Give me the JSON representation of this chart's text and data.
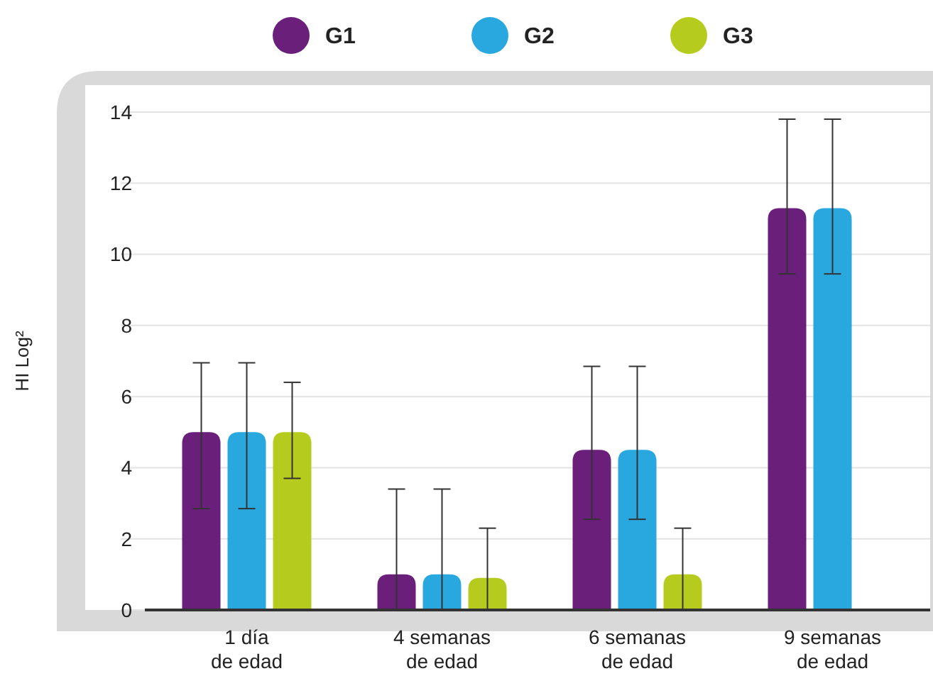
{
  "chart_data": {
    "type": "bar",
    "ylabel": "HI  Log²",
    "categories": [
      "1 día\nde edad",
      "4 semanas\nde edad",
      "6 semanas\nde edad",
      "9 semanas\nde edad"
    ],
    "series": [
      {
        "name": "G1",
        "color": "#6a1f7a",
        "values": [
          5.0,
          1.0,
          4.5,
          11.3
        ],
        "errors": [
          [
            2.85,
            6.95
          ],
          [
            0,
            3.4
          ],
          [
            2.55,
            6.85
          ],
          [
            9.45,
            13.8
          ]
        ]
      },
      {
        "name": "G2",
        "color": "#29a8e0",
        "values": [
          5.0,
          1.0,
          4.5,
          11.3
        ],
        "errors": [
          [
            2.85,
            6.95
          ],
          [
            0,
            3.4
          ],
          [
            2.55,
            6.85
          ],
          [
            9.45,
            13.8
          ]
        ]
      },
      {
        "name": "G3",
        "color": "#b5cc1e",
        "values": [
          5.0,
          0.9,
          1.0,
          null
        ],
        "errors": [
          [
            3.7,
            6.4
          ],
          [
            0,
            2.3
          ],
          [
            0,
            2.3
          ],
          null
        ]
      }
    ],
    "ylim": [
      0,
      14
    ],
    "yticks": [
      0,
      2,
      4,
      6,
      8,
      10,
      12,
      14
    ],
    "grid": "y",
    "legend": "top"
  }
}
